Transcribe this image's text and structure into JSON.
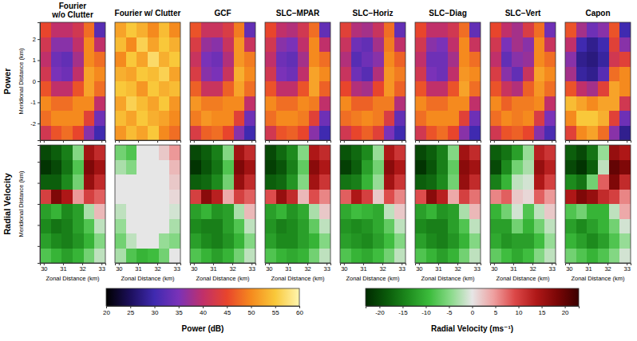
{
  "chart_data": {
    "type": "heatmap",
    "titles": [
      "Fourier w/o Clutter",
      "Fourier w/ Clutter",
      "GCF",
      "SLC−MPAR",
      "SLC−Horiz",
      "SLC−Diag",
      "SLC−Vert",
      "Capon"
    ],
    "x": [
      30.08,
      30.65,
      31.22,
      31.78,
      32.35,
      32.92
    ],
    "y": [
      2.45,
      1.75,
      1.05,
      0.35,
      -0.35,
      -1.05,
      -1.75,
      -2.45
    ],
    "xlim": [
      29.8,
      33.2
    ],
    "xticks": [
      30,
      31,
      32,
      33
    ],
    "ylim": [
      -2.8,
      2.8
    ],
    "yticks": [
      -2,
      -1,
      0,
      1,
      2
    ],
    "rows": [
      {
        "label": "Power",
        "ylabel": "Meridional Distance (km)",
        "tick_labels": "y",
        "panels": [
          [
            [
              45,
              40,
              40,
              42,
              48,
              32
            ],
            [
              42,
              36,
              36,
              40,
              50,
              40
            ],
            [
              40,
              34,
              33,
              38,
              50,
              48
            ],
            [
              42,
              35,
              34,
              40,
              52,
              50
            ],
            [
              46,
              40,
              40,
              46,
              52,
              48
            ],
            [
              50,
              48,
              48,
              50,
              50,
              40
            ],
            [
              48,
              50,
              50,
              50,
              44,
              34
            ],
            [
              42,
              46,
              48,
              45,
              36,
              30
            ]
          ],
          [
            [
              52,
              55,
              53,
              50,
              54,
              50
            ],
            [
              54,
              50,
              56,
              52,
              55,
              53
            ],
            [
              50,
              55,
              52,
              57,
              53,
              55
            ],
            [
              53,
              52,
              55,
              54,
              56,
              52
            ],
            [
              55,
              54,
              51,
              55,
              53,
              54
            ],
            [
              52,
              56,
              54,
              52,
              55,
              51
            ],
            [
              54,
              52,
              55,
              53,
              52,
              50
            ],
            [
              51,
              54,
              52,
              55,
              50,
              48
            ]
          ],
          [
            [
              46,
              41,
              41,
              43,
              49,
              33
            ],
            [
              43,
              37,
              36,
              41,
              51,
              41
            ],
            [
              41,
              35,
              34,
              39,
              51,
              49
            ],
            [
              43,
              36,
              35,
              41,
              53,
              50
            ],
            [
              47,
              41,
              41,
              47,
              52,
              48
            ],
            [
              51,
              49,
              49,
              50,
              50,
              40
            ],
            [
              49,
              51,
              50,
              50,
              44,
              34
            ],
            [
              43,
              47,
              48,
              45,
              36,
              30
            ]
          ],
          [
            [
              45,
              40,
              39,
              42,
              48,
              33
            ],
            [
              42,
              36,
              35,
              40,
              50,
              40
            ],
            [
              40,
              34,
              33,
              38,
              50,
              48
            ],
            [
              42,
              35,
              34,
              40,
              52,
              50
            ],
            [
              46,
              40,
              40,
              46,
              52,
              47
            ],
            [
              50,
              48,
              48,
              50,
              49,
              40
            ],
            [
              48,
              50,
              50,
              49,
              44,
              34
            ],
            [
              42,
              46,
              47,
              45,
              36,
              30
            ]
          ],
          [
            [
              44,
              39,
              38,
              41,
              48,
              33
            ],
            [
              41,
              34,
              33,
              38,
              49,
              40
            ],
            [
              39,
              32,
              34,
              36,
              50,
              47
            ],
            [
              41,
              34,
              32,
              39,
              51,
              49
            ],
            [
              45,
              39,
              38,
              45,
              51,
              47
            ],
            [
              50,
              47,
              47,
              49,
              49,
              39
            ],
            [
              48,
              49,
              50,
              49,
              43,
              33
            ],
            [
              42,
              45,
              47,
              44,
              35,
              30
            ]
          ],
          [
            [
              45,
              40,
              40,
              42,
              48,
              33
            ],
            [
              42,
              36,
              35,
              40,
              50,
              41
            ],
            [
              40,
              34,
              34,
              38,
              50,
              48
            ],
            [
              42,
              35,
              34,
              40,
              51,
              50
            ],
            [
              46,
              40,
              40,
              46,
              52,
              48
            ],
            [
              50,
              48,
              48,
              50,
              50,
              40
            ],
            [
              48,
              50,
              50,
              50,
              44,
              34
            ],
            [
              42,
              46,
              48,
              45,
              36,
              30
            ]
          ],
          [
            [
              45,
              40,
              38,
              43,
              48,
              34
            ],
            [
              42,
              35,
              38,
              36,
              50,
              41
            ],
            [
              40,
              33,
              36,
              37,
              50,
              48
            ],
            [
              43,
              36,
              33,
              41,
              52,
              50
            ],
            [
              46,
              41,
              39,
              47,
              51,
              48
            ],
            [
              50,
              47,
              49,
              49,
              50,
              40
            ],
            [
              48,
              50,
              49,
              50,
              43,
              35
            ],
            [
              42,
              46,
              47,
              45,
              36,
              31
            ]
          ],
          [
            [
              46,
              38,
              34,
              36,
              46,
              30
            ],
            [
              40,
              30,
              28,
              30,
              44,
              36
            ],
            [
              36,
              28,
              27,
              29,
              42,
              44
            ],
            [
              38,
              29,
              28,
              32,
              48,
              50
            ],
            [
              46,
              40,
              38,
              44,
              52,
              50
            ],
            [
              54,
              52,
              50,
              52,
              52,
              42
            ],
            [
              50,
              55,
              55,
              53,
              44,
              34
            ],
            [
              44,
              50,
              52,
              48,
              36,
              28
            ]
          ]
        ]
      },
      {
        "label": "Radial Velocity",
        "ylabel": "Meridional Distance (km)",
        "xlabel": "Zonal Distance (km)",
        "tick_labels": "x",
        "panels": [
          [
            [
              -20,
              -18,
              -15,
              -5,
              15,
              12
            ],
            [
              -22,
              -20,
              -16,
              -8,
              18,
              15
            ],
            [
              -18,
              -18,
              -14,
              -6,
              16,
              12
            ],
            [
              10,
              18,
              14,
              5,
              10,
              8
            ],
            [
              -12,
              -10,
              -14,
              -12,
              -3,
              3
            ],
            [
              -14,
              -16,
              -15,
              -12,
              -8,
              -2
            ],
            [
              -12,
              -14,
              -15,
              -13,
              -10,
              -5
            ],
            [
              -8,
              -10,
              -12,
              -10,
              -6,
              -2
            ]
          ],
          [
            [
              -6,
              -8,
              0,
              0,
              2,
              5
            ],
            [
              -3,
              -5,
              0,
              0,
              0,
              3
            ],
            [
              0,
              0,
              0,
              0,
              0,
              2
            ],
            [
              0,
              0,
              0,
              0,
              0,
              1
            ],
            [
              -2,
              0,
              0,
              0,
              0,
              -1
            ],
            [
              -4,
              0,
              0,
              0,
              0,
              -3
            ],
            [
              -6,
              -2,
              0,
              0,
              -4,
              -5
            ],
            [
              -3,
              -8,
              -10,
              -9,
              -6,
              0
            ]
          ],
          [
            [
              -20,
              -18,
              -15,
              -5,
              15,
              12
            ],
            [
              -22,
              -19,
              -16,
              -8,
              18,
              15
            ],
            [
              -18,
              -17,
              -14,
              -6,
              16,
              12
            ],
            [
              10,
              17,
              13,
              4,
              10,
              8
            ],
            [
              -12,
              -10,
              -13,
              -12,
              -3,
              3
            ],
            [
              -14,
              -15,
              -15,
              -12,
              -8,
              -2
            ],
            [
              -12,
              -14,
              -15,
              -13,
              -10,
              -5
            ],
            [
              -8,
              -10,
              -12,
              -10,
              -6,
              -2
            ]
          ],
          [
            [
              -20,
              -17,
              -14,
              -5,
              14,
              12
            ],
            [
              -21,
              -19,
              -15,
              -7,
              17,
              14
            ],
            [
              -18,
              -17,
              -13,
              -5,
              15,
              11
            ],
            [
              9,
              16,
              12,
              3,
              9,
              6
            ],
            [
              -12,
              -10,
              -13,
              -11,
              -3,
              2
            ],
            [
              -13,
              -15,
              -14,
              -12,
              -7,
              -2
            ],
            [
              -12,
              -14,
              -14,
              -12,
              -10,
              -5
            ],
            [
              -8,
              -10,
              -11,
              -10,
              -6,
              -2
            ]
          ],
          [
            [
              -19,
              -17,
              -14,
              -4,
              14,
              11
            ],
            [
              -21,
              -18,
              -12,
              -6,
              17,
              14
            ],
            [
              -16,
              -15,
              -10,
              -4,
              15,
              11
            ],
            [
              8,
              14,
              10,
              2,
              9,
              6
            ],
            [
              -11,
              -9,
              -10,
              -11,
              -2,
              2
            ],
            [
              -13,
              -14,
              -13,
              -11,
              -7,
              -2
            ],
            [
              -12,
              -13,
              -14,
              -12,
              -9,
              -5
            ],
            [
              -8,
              -10,
              -11,
              -9,
              -6,
              -2
            ]
          ],
          [
            [
              -20,
              -18,
              -15,
              -5,
              15,
              12
            ],
            [
              -22,
              -19,
              -15,
              -7,
              17,
              15
            ],
            [
              -18,
              -17,
              -14,
              -6,
              16,
              12
            ],
            [
              9,
              17,
              13,
              4,
              10,
              7
            ],
            [
              -12,
              -10,
              -13,
              -12,
              -3,
              3
            ],
            [
              -14,
              -15,
              -15,
              -12,
              -8,
              -2
            ],
            [
              -12,
              -14,
              -15,
              -13,
              -10,
              -5
            ],
            [
              -8,
              -10,
              -12,
              -10,
              -6,
              -2
            ]
          ],
          [
            [
              -18,
              -16,
              -12,
              -4,
              13,
              11
            ],
            [
              -20,
              -14,
              -6,
              -3,
              16,
              13
            ],
            [
              -15,
              -10,
              -2,
              -1,
              14,
              10
            ],
            [
              6,
              8,
              2,
              1,
              8,
              5
            ],
            [
              -10,
              -6,
              -1,
              -8,
              -2,
              2
            ],
            [
              -12,
              -12,
              -6,
              -10,
              -6,
              -2
            ],
            [
              -11,
              -13,
              -12,
              -12,
              -9,
              -4
            ],
            [
              -7,
              -9,
              -11,
              -9,
              -5,
              -2
            ]
          ],
          [
            [
              -18,
              -20,
              -16,
              -4,
              16,
              14
            ],
            [
              -20,
              -22,
              -18,
              -2,
              20,
              18
            ],
            [
              -14,
              -16,
              -6,
              8,
              18,
              12
            ],
            [
              14,
              18,
              16,
              12,
              10,
              6
            ],
            [
              -8,
              -6,
              -10,
              -10,
              -2,
              4
            ],
            [
              -12,
              -14,
              -12,
              -10,
              -6,
              -1
            ],
            [
              -10,
              -12,
              -14,
              -12,
              -8,
              -4
            ],
            [
              -6,
              -8,
              -10,
              -8,
              -5,
              -1
            ]
          ]
        ]
      }
    ],
    "colorbars": [
      {
        "label": "Power (dB)",
        "range": [
          20,
          60
        ],
        "ticks": [
          20,
          25,
          30,
          35,
          40,
          45,
          50,
          55,
          60
        ]
      },
      {
        "label": "Radial Velocity (ms⁻¹)",
        "range": [
          -23,
          23
        ],
        "ticks": [
          -20,
          -15,
          -10,
          -5,
          0,
          5,
          10,
          15,
          20
        ]
      }
    ]
  }
}
